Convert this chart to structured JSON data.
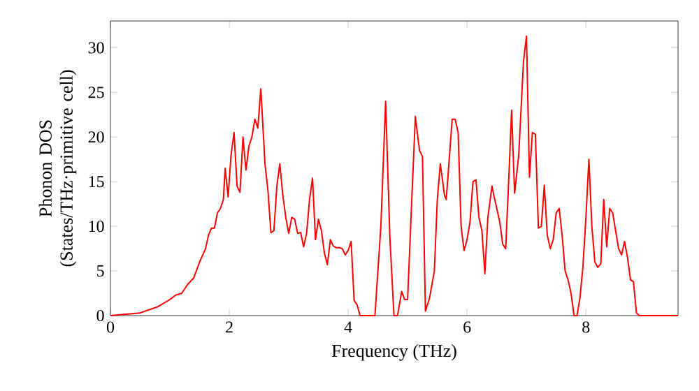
{
  "chart_data": {
    "type": "line",
    "xlabel": "Frequency (THz)",
    "ylabel": "Phonon DOS (States/THz·primitive cell)",
    "xlim": [
      0,
      9.55
    ],
    "ylim": [
      0,
      33
    ],
    "xticks": [
      0,
      2,
      4,
      6,
      8
    ],
    "yticks": [
      0,
      5,
      10,
      15,
      20,
      25,
      30
    ],
    "marker": "none",
    "line_style": "solid",
    "series": [
      {
        "color": "#ff0000",
        "x": [
          0,
          0.5,
          0.8,
          1.0,
          1.1,
          1.2,
          1.3,
          1.4,
          1.5,
          1.6,
          1.65,
          1.7,
          1.75,
          1.8,
          1.85,
          1.9,
          1.93,
          1.98,
          2.03,
          2.08,
          2.13,
          2.18,
          2.23,
          2.28,
          2.33,
          2.38,
          2.43,
          2.48,
          2.53,
          2.6,
          2.65,
          2.7,
          2.75,
          2.8,
          2.85,
          2.9,
          2.95,
          3.0,
          3.05,
          3.1,
          3.15,
          3.2,
          3.25,
          3.3,
          3.35,
          3.4,
          3.45,
          3.5,
          3.55,
          3.6,
          3.65,
          3.7,
          3.75,
          3.8,
          3.85,
          3.9,
          3.95,
          4.0,
          4.05,
          4.1,
          4.15,
          4.2,
          4.45,
          4.55,
          4.63,
          4.7,
          4.77,
          4.83,
          4.9,
          4.95,
          5.0,
          5.07,
          5.13,
          5.2,
          5.25,
          5.3,
          5.37,
          5.45,
          5.5,
          5.55,
          5.62,
          5.65,
          5.75,
          5.8,
          5.85,
          5.9,
          5.95,
          6.0,
          6.05,
          6.1,
          6.15,
          6.2,
          6.25,
          6.3,
          6.35,
          6.42,
          6.45,
          6.5,
          6.55,
          6.6,
          6.65,
          6.7,
          6.75,
          6.8,
          6.87,
          6.95,
          7.0,
          7.05,
          7.1,
          7.15,
          7.2,
          7.25,
          7.3,
          7.35,
          7.4,
          7.45,
          7.5,
          7.55,
          7.6,
          7.65,
          7.7,
          7.75,
          7.8,
          7.85,
          7.9,
          7.95,
          8.0,
          8.05,
          8.1,
          8.15,
          8.2,
          8.25,
          8.3,
          8.35,
          8.4,
          8.45,
          8.5,
          8.55,
          8.6,
          8.65,
          8.7,
          8.75,
          8.8,
          8.85,
          8.9,
          9.55
        ],
        "values": [
          0,
          0.3,
          1.0,
          1.8,
          2.3,
          2.5,
          3.5,
          4.2,
          6,
          7.5,
          9,
          9.8,
          9.8,
          11.5,
          12,
          13,
          16.5,
          13.3,
          18,
          20.5,
          14.5,
          13.8,
          20,
          16.3,
          19,
          20,
          22,
          21,
          25.4,
          17,
          14,
          9.3,
          9.5,
          14.5,
          17,
          13.5,
          11,
          9.2,
          11,
          10.8,
          9.2,
          9.3,
          7.7,
          9.2,
          13,
          15.4,
          8.5,
          10.8,
          9.5,
          7,
          5.7,
          8.5,
          7.8,
          7.6,
          7.6,
          7.5,
          6.8,
          7.3,
          8.3,
          1.7,
          1.2,
          0,
          0,
          10,
          24,
          9,
          0,
          0,
          2.7,
          1.8,
          1.8,
          13,
          22.3,
          18.5,
          17.8,
          0.5,
          2,
          5,
          13,
          17,
          13.5,
          13,
          22,
          22,
          20.5,
          10,
          7.3,
          8.5,
          10.5,
          15,
          15.2,
          11,
          9.5,
          4.7,
          11,
          14.5,
          13.5,
          12,
          10.5,
          8,
          7.5,
          15,
          23,
          13.7,
          18,
          28.5,
          31.3,
          15.5,
          20.5,
          20.3,
          9.8,
          10,
          14.6,
          9,
          7.5,
          8.5,
          11.5,
          12,
          9,
          5,
          4,
          2.5,
          0,
          0,
          2,
          5.5,
          11,
          17.5,
          10,
          6,
          5.4,
          5.8,
          13,
          7.7,
          12,
          11.5,
          9.5,
          7.5,
          6.8,
          8.3,
          6.5,
          4,
          3.8,
          0.3,
          0,
          0
        ]
      }
    ]
  }
}
